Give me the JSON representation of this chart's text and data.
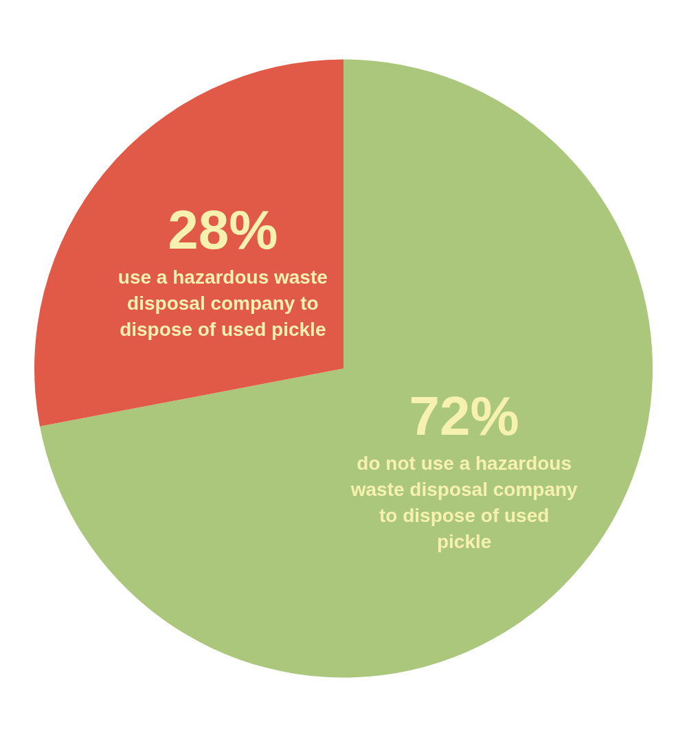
{
  "chart_data": {
    "type": "pie",
    "categories": [
      "do not use a hazardous waste disposal company to dispose of used pickle",
      "use a hazardous waste disposal company to dispose of used pickle"
    ],
    "values": [
      72,
      28
    ],
    "value_labels": [
      "72%",
      "28%"
    ],
    "colors": [
      "#abc77b",
      "#e05a47"
    ]
  }
}
